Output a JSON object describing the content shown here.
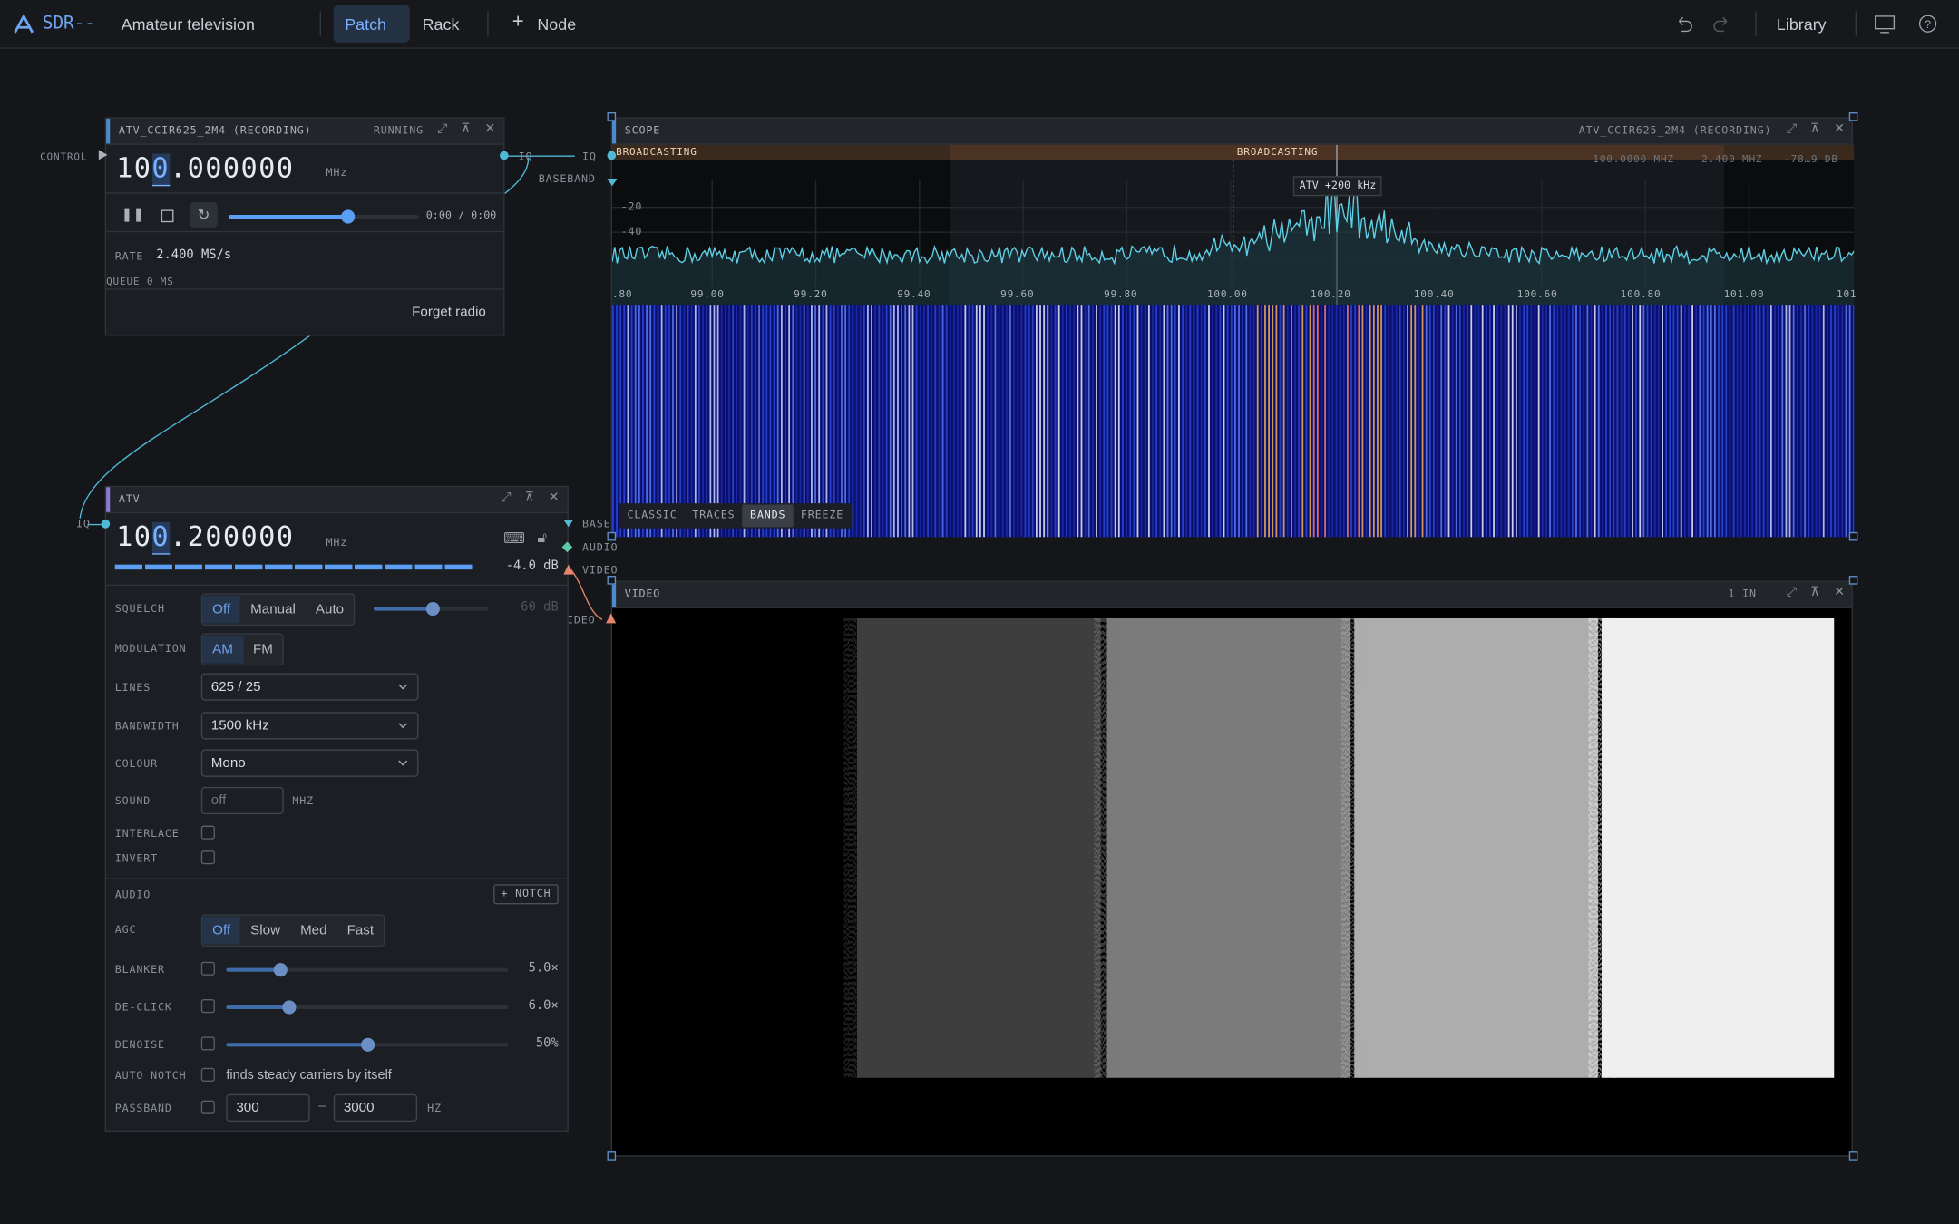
{
  "topbar": {
    "app": "SDR--",
    "project": "Amateur television",
    "tabs": [
      "Patch",
      "Rack"
    ],
    "add_node": "Node",
    "library": "Library"
  },
  "radio_node": {
    "title": "ATV_CCIR625_2M4 (RECORDING)",
    "status": "RUNNING",
    "control_port": "CONTROL",
    "frequency": "100.000000",
    "unit": "MHz",
    "time": "0:00 / 0:00",
    "rate_label": "RATE",
    "rate": "2.400 MS/s",
    "queue": "QUEUE 0 MS",
    "forget": "Forget radio",
    "out_port": "IQ"
  },
  "scope": {
    "title": "SCOPE",
    "source": "ATV_CCIR625_2M4 (RECORDING)",
    "input_ports": [
      "IQ",
      "BASEBAND"
    ],
    "bands": [
      "BROADCASTING",
      "BROADCASTING"
    ],
    "center": "100.0000 MHZ",
    "span": "2.400 MHZ",
    "range": "-78…9 DB",
    "marker": "ATV +200 kHz",
    "y_labels": [
      "-20",
      "-40"
    ],
    "x_labels": [
      ".80",
      "99.00",
      "99.20",
      "99.40",
      "99.60",
      "99.80",
      "100.00",
      "100.20",
      "100.40",
      "100.60",
      "100.80",
      "101.00",
      "101"
    ],
    "modes": [
      "CLASSIC",
      "TRACES",
      "BANDS",
      "FREEZE"
    ]
  },
  "atv_node": {
    "title": "ATV",
    "in_port": "IQ",
    "frequency": "100.200000",
    "unit": "MHz",
    "level": "-4.0 dB",
    "ports": [
      "BASE",
      "AUDIO",
      "VIDEO"
    ],
    "squelch": {
      "label": "SQUELCH",
      "options": [
        "Off",
        "Manual",
        "Auto"
      ],
      "threshold": "-60 dB"
    },
    "modulation": {
      "label": "MODULATION",
      "options": [
        "AM",
        "FM"
      ]
    },
    "lines": {
      "label": "LINES",
      "value": "625 / 25"
    },
    "bandwidth": {
      "label": "BANDWIDTH",
      "value": "1500 kHz"
    },
    "colour": {
      "label": "COLOUR",
      "value": "Mono"
    },
    "sound": {
      "label": "SOUND",
      "value": "off",
      "unit": "MHZ"
    },
    "interlace": "INTERLACE",
    "invert": "INVERT",
    "audio": {
      "label": "AUDIO",
      "notch": "+ NOTCH"
    },
    "agc": {
      "label": "AGC",
      "options": [
        "Off",
        "Slow",
        "Med",
        "Fast"
      ]
    },
    "blanker": {
      "label": "BLANKER",
      "value": "5.0×"
    },
    "declick": {
      "label": "DE-CLICK",
      "value": "6.0×"
    },
    "denoise": {
      "label": "DENOISE",
      "value": "50%"
    },
    "auto_notch": {
      "label": "AUTO NOTCH",
      "hint": "finds steady carriers by itself"
    },
    "passband": {
      "label": "PASSBAND",
      "low": "300",
      "sep": "–",
      "high": "3000",
      "unit": "HZ"
    }
  },
  "video": {
    "title": "VIDEO",
    "inputs": "1 IN",
    "in_port": "VIDEO"
  }
}
